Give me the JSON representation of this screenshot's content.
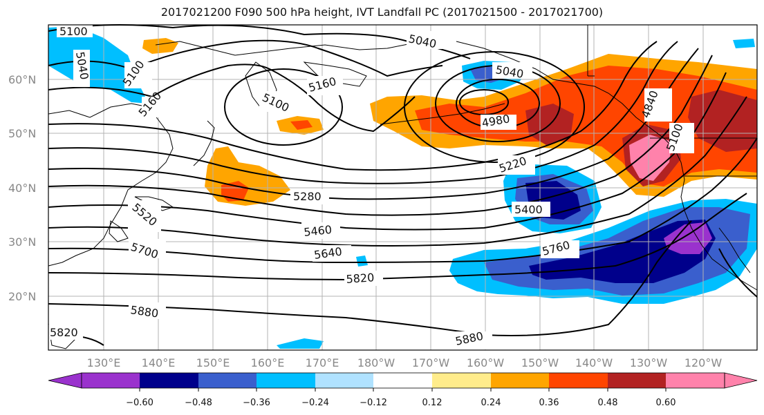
{
  "title": "2017021200 F090 500 hPa height, IVT Landfall PC (2017021500 - 2017021700)",
  "lat_labels": [
    "60°N",
    "50°N",
    "40°N",
    "30°N",
    "20°N"
  ],
  "lon_labels": [
    "130°E",
    "140°E",
    "150°E",
    "160°E",
    "170°E",
    "180°W",
    "170°W",
    "160°W",
    "150°W",
    "140°W",
    "130°W",
    "120°W"
  ],
  "contour_labels": [
    "5100",
    "5040",
    "5100",
    "5160",
    "5100",
    "5160",
    "5040",
    "5040",
    "4980",
    "4840",
    "5100",
    "5220",
    "5280",
    "5400",
    "5460",
    "5520",
    "5640",
    "5700",
    "5760",
    "5820",
    "5880",
    "5880",
    "5820"
  ],
  "colorbar": {
    "ticks": [
      "−0.60",
      "−0.48",
      "−0.36",
      "−0.24",
      "−0.12",
      "0.12",
      "0.24",
      "0.36",
      "0.48",
      "0.60"
    ],
    "colors": [
      "#9a32cd",
      "#00008b",
      "#3a5fcd",
      "#00bfff",
      "#b0e2ff",
      "#ffffff",
      "#ffec8b",
      "#ffa500",
      "#ff4500",
      "#b22222",
      "#ff82ab"
    ]
  },
  "colors": {
    "grid": "#b3b3b3",
    "contour": "#000000",
    "coast": "#000000"
  }
}
